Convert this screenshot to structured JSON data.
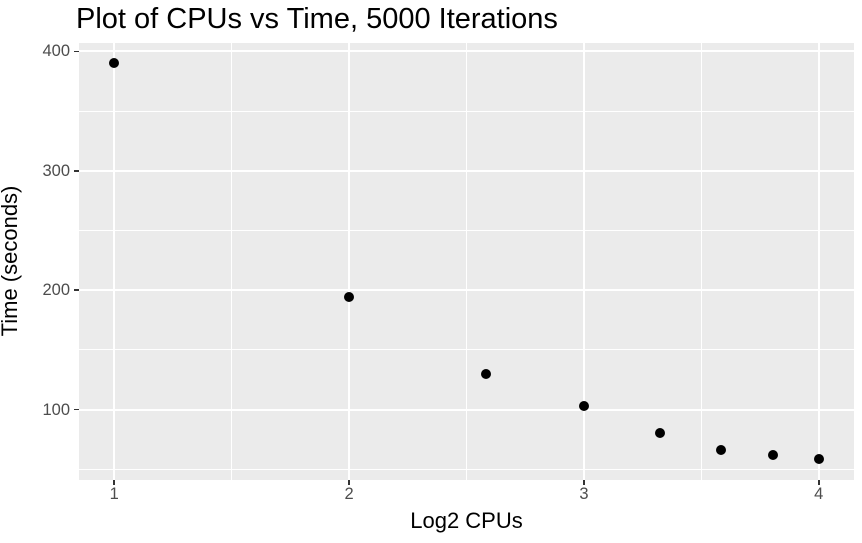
{
  "chart_data": {
    "type": "scatter",
    "title": "Plot of CPUs vs Time, 5000 Iterations",
    "xlabel": "Log2 CPUs",
    "ylabel": "Time (seconds)",
    "points": [
      {
        "x": 1.0,
        "y": 390
      },
      {
        "x": 2.0,
        "y": 194
      },
      {
        "x": 2.585,
        "y": 130
      },
      {
        "x": 3.0,
        "y": 103
      },
      {
        "x": 3.322,
        "y": 80
      },
      {
        "x": 3.585,
        "y": 66
      },
      {
        "x": 3.807,
        "y": 62
      },
      {
        "x": 4.0,
        "y": 59
      }
    ],
    "xlim": [
      0.85,
      4.15
    ],
    "ylim": [
      41,
      407
    ],
    "x_ticks": [
      "1",
      "2",
      "3",
      "4"
    ],
    "x_tick_values": [
      1,
      2,
      3,
      4
    ],
    "y_ticks": [
      "100",
      "200",
      "300",
      "400"
    ],
    "y_tick_values": [
      100,
      200,
      300,
      400
    ],
    "x_minor_values": [
      1.5,
      2.5,
      3.5
    ],
    "y_minor_values": [
      50,
      150,
      250,
      350
    ],
    "grid": true,
    "legend_position": "none",
    "point_color": "#000000",
    "panel_bg": "#ebebeb",
    "grid_color": "#ffffff",
    "tick_label_color": "#4d4d4d",
    "title_color": "#000000"
  }
}
